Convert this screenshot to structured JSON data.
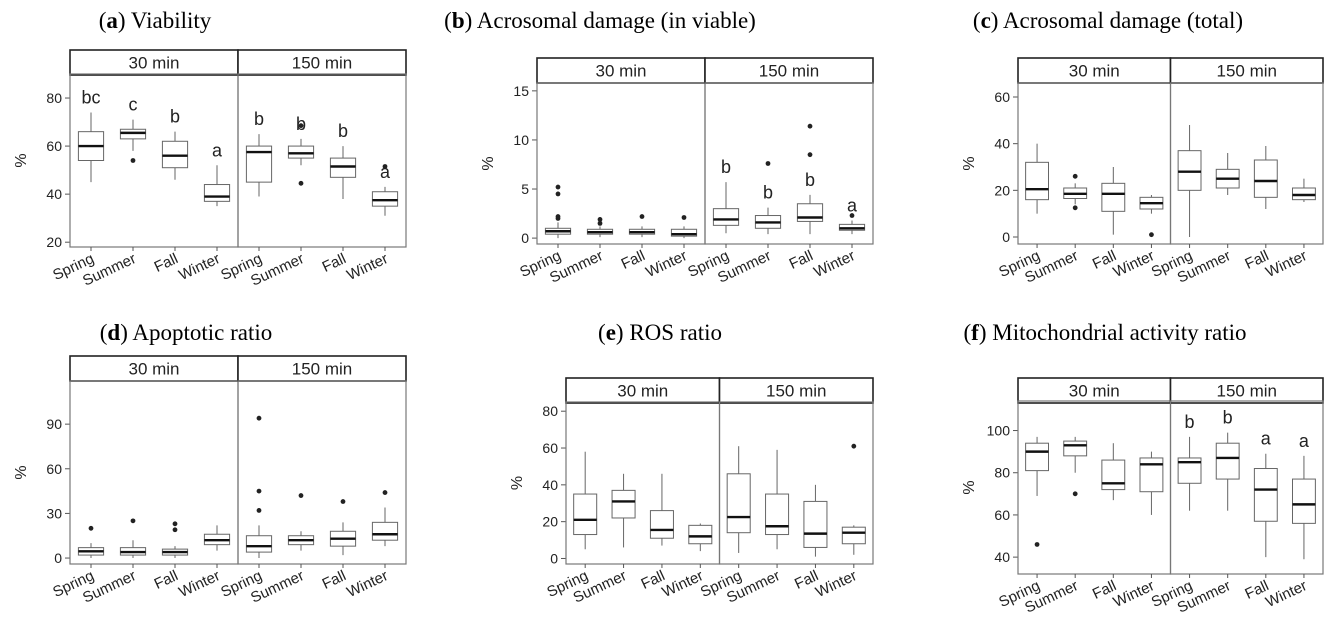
{
  "chart_data": [
    {
      "type": "box",
      "panel": "a",
      "title": "Viability",
      "ylabel": "%",
      "ylim": [
        18,
        90
      ],
      "yticks": [
        20,
        40,
        60,
        80
      ],
      "categories": [
        "Spring",
        "Summer",
        "Fall",
        "Winter"
      ],
      "facets": [
        {
          "label": "30 min",
          "boxes": [
            {
              "min": 45,
              "q1": 54,
              "median": 60,
              "q3": 66,
              "max": 74,
              "outliers": [],
              "letter": "bc"
            },
            {
              "min": 58,
              "q1": 63,
              "median": 65.5,
              "q3": 67,
              "max": 71,
              "outliers": [
                54
              ],
              "letter": "c"
            },
            {
              "min": 46,
              "q1": 51,
              "median": 56,
              "q3": 62,
              "max": 66,
              "outliers": [],
              "letter": "b"
            },
            {
              "min": 35,
              "q1": 37,
              "median": 39,
              "q3": 44,
              "max": 52,
              "outliers": [],
              "letter": "a"
            }
          ]
        },
        {
          "label": "150 min",
          "boxes": [
            {
              "min": 39,
              "q1": 45,
              "median": 57.5,
              "q3": 60,
              "max": 65,
              "outliers": [],
              "letter": "b"
            },
            {
              "min": 52,
              "q1": 55,
              "median": 57,
              "q3": 60,
              "max": 63,
              "outliers": [
                68.5,
                44.5
              ],
              "letter": "b"
            },
            {
              "min": 38,
              "q1": 47,
              "median": 51.5,
              "q3": 55,
              "max": 60,
              "outliers": [],
              "letter": "b"
            },
            {
              "min": 31,
              "q1": 35,
              "median": 37.5,
              "q3": 41,
              "max": 43,
              "outliers": [
                51.5
              ],
              "letter": "a"
            }
          ]
        }
      ]
    },
    {
      "type": "box",
      "panel": "b",
      "title": "Acrosomal damage (in viable)",
      "ylabel": "%",
      "ylim": [
        -0.6,
        15.8
      ],
      "yticks": [
        0,
        5,
        10,
        15
      ],
      "categories": [
        "Spring",
        "Summer",
        "Fall",
        "Winter"
      ],
      "facets": [
        {
          "label": "30 min",
          "boxes": [
            {
              "min": 0,
              "q1": 0.4,
              "median": 0.7,
              "q3": 1.0,
              "max": 1.6,
              "outliers": [
                5.2,
                4.5,
                2.2,
                2.0
              ],
              "letter": ""
            },
            {
              "min": 0.1,
              "q1": 0.4,
              "median": 0.6,
              "q3": 0.9,
              "max": 1.2,
              "outliers": [
                1.9,
                1.5
              ],
              "letter": ""
            },
            {
              "min": 0.1,
              "q1": 0.4,
              "median": 0.6,
              "q3": 0.9,
              "max": 1.2,
              "outliers": [
                2.2
              ],
              "letter": ""
            },
            {
              "min": 0,
              "q1": 0.2,
              "median": 0.4,
              "q3": 0.9,
              "max": 1.2,
              "outliers": [
                2.1
              ],
              "letter": ""
            }
          ]
        },
        {
          "label": "150 min",
          "boxes": [
            {
              "min": 0.5,
              "q1": 1.3,
              "median": 1.9,
              "q3": 3.0,
              "max": 5.7,
              "outliers": [],
              "letter": "b"
            },
            {
              "min": 0.4,
              "q1": 1.0,
              "median": 1.6,
              "q3": 2.3,
              "max": 3.1,
              "outliers": [
                7.6
              ],
              "letter": "b"
            },
            {
              "min": 0.4,
              "q1": 1.7,
              "median": 2.1,
              "q3": 3.5,
              "max": 4.4,
              "outliers": [
                11.4,
                8.5
              ],
              "letter": "b"
            },
            {
              "min": 0.4,
              "q1": 0.8,
              "median": 1.0,
              "q3": 1.4,
              "max": 1.8,
              "outliers": [
                2.3
              ],
              "letter": "a"
            }
          ]
        }
      ]
    },
    {
      "type": "box",
      "panel": "c",
      "title": "Acrosomal damage (total)",
      "ylabel": "%",
      "ylim": [
        -3,
        66
      ],
      "yticks": [
        0,
        20,
        40,
        60
      ],
      "categories": [
        "Spring",
        "Summer",
        "Fall",
        "Winter"
      ],
      "facets": [
        {
          "label": "30 min",
          "boxes": [
            {
              "min": 10,
              "q1": 16,
              "median": 20.5,
              "q3": 32,
              "max": 40,
              "outliers": [],
              "letter": ""
            },
            {
              "min": 14,
              "q1": 16.5,
              "median": 18.5,
              "q3": 21,
              "max": 23,
              "outliers": [
                26,
                12.5
              ],
              "letter": ""
            },
            {
              "min": 1,
              "q1": 11,
              "median": 18.5,
              "q3": 23,
              "max": 30,
              "outliers": [],
              "letter": ""
            },
            {
              "min": 10,
              "q1": 12,
              "median": 14.5,
              "q3": 17,
              "max": 18,
              "outliers": [
                1
              ],
              "letter": ""
            }
          ]
        },
        {
          "label": "150 min",
          "boxes": [
            {
              "min": 0,
              "q1": 20,
              "median": 28,
              "q3": 37,
              "max": 48,
              "outliers": [],
              "letter": ""
            },
            {
              "min": 18,
              "q1": 21,
              "median": 25,
              "q3": 29,
              "max": 36,
              "outliers": [],
              "letter": ""
            },
            {
              "min": 12,
              "q1": 17,
              "median": 24,
              "q3": 33,
              "max": 39,
              "outliers": [],
              "letter": ""
            },
            {
              "min": 15,
              "q1": 16,
              "median": 18,
              "q3": 21,
              "max": 25,
              "outliers": [],
              "letter": ""
            }
          ]
        }
      ]
    },
    {
      "type": "box",
      "panel": "d",
      "title": "Apoptotic ratio",
      "ylabel": "%",
      "ylim": [
        -4,
        119
      ],
      "yticks": [
        0,
        30,
        60,
        90
      ],
      "categories": [
        "Spring",
        "Summer",
        "Fall",
        "Winter"
      ],
      "facets": [
        {
          "label": "30 min",
          "boxes": [
            {
              "min": 0,
              "q1": 2,
              "median": 4.5,
              "q3": 7,
              "max": 10,
              "outliers": [
                20
              ],
              "letter": ""
            },
            {
              "min": 0,
              "q1": 2,
              "median": 4,
              "q3": 7,
              "max": 12,
              "outliers": [
                25
              ],
              "letter": ""
            },
            {
              "min": 0,
              "q1": 2,
              "median": 4,
              "q3": 6,
              "max": 8,
              "outliers": [
                23,
                19
              ],
              "letter": ""
            },
            {
              "min": 5,
              "q1": 9,
              "median": 12,
              "q3": 16,
              "max": 22,
              "outliers": [],
              "letter": ""
            }
          ]
        },
        {
          "label": "150 min",
          "boxes": [
            {
              "min": 0,
              "q1": 4,
              "median": 8,
              "q3": 15,
              "max": 22,
              "outliers": [
                94,
                45,
                32
              ],
              "letter": ""
            },
            {
              "min": 5,
              "q1": 9,
              "median": 12,
              "q3": 15,
              "max": 18,
              "outliers": [
                42
              ],
              "letter": ""
            },
            {
              "min": 2,
              "q1": 8,
              "median": 13,
              "q3": 18,
              "max": 24,
              "outliers": [
                38
              ],
              "letter": ""
            },
            {
              "min": 8,
              "q1": 12,
              "median": 16,
              "q3": 24,
              "max": 34,
              "outliers": [
                44
              ],
              "letter": ""
            }
          ]
        }
      ]
    },
    {
      "type": "box",
      "panel": "e",
      "title": "ROS ratio",
      "ylabel": "%",
      "ylim": [
        -3,
        85
      ],
      "yticks": [
        0,
        20,
        40,
        60,
        80
      ],
      "categories": [
        "Spring",
        "Summer",
        "Fall",
        "Winter"
      ],
      "facets": [
        {
          "label": "30 min",
          "boxes": [
            {
              "min": 5,
              "q1": 13,
              "median": 21,
              "q3": 35,
              "max": 58,
              "outliers": [],
              "letter": ""
            },
            {
              "min": 6,
              "q1": 22,
              "median": 31,
              "q3": 37,
              "max": 46,
              "outliers": [],
              "letter": ""
            },
            {
              "min": 7,
              "q1": 11,
              "median": 15.5,
              "q3": 26,
              "max": 46,
              "outliers": [],
              "letter": ""
            },
            {
              "min": 4,
              "q1": 8,
              "median": 12,
              "q3": 18,
              "max": 19,
              "outliers": [],
              "letter": ""
            }
          ]
        },
        {
          "label": "150 min",
          "boxes": [
            {
              "min": 3,
              "q1": 14,
              "median": 22.5,
              "q3": 46,
              "max": 61,
              "outliers": [],
              "letter": ""
            },
            {
              "min": 5,
              "q1": 13,
              "median": 17.5,
              "q3": 35,
              "max": 59,
              "outliers": [],
              "letter": ""
            },
            {
              "min": 1,
              "q1": 6,
              "median": 13.5,
              "q3": 31,
              "max": 40,
              "outliers": [],
              "letter": ""
            },
            {
              "min": 2,
              "q1": 8,
              "median": 14,
              "q3": 17,
              "max": 18,
              "outliers": [
                61
              ],
              "letter": ""
            }
          ]
        }
      ]
    },
    {
      "type": "box",
      "panel": "f",
      "title": "Mitochondrial activity ratio",
      "ylabel": "%",
      "ylim": [
        32,
        114
      ],
      "yticks": [
        40,
        60,
        80,
        100
      ],
      "categories": [
        "Spring",
        "Summer",
        "Fall",
        "Winter"
      ],
      "facets": [
        {
          "label": "30 min",
          "boxes": [
            {
              "min": 69,
              "q1": 81,
              "median": 90,
              "q3": 94,
              "max": 97,
              "outliers": [
                46
              ],
              "letter": ""
            },
            {
              "min": 80,
              "q1": 88,
              "median": 93,
              "q3": 95,
              "max": 97,
              "outliers": [
                70
              ],
              "letter": ""
            },
            {
              "min": 67,
              "q1": 72,
              "median": 75,
              "q3": 86,
              "max": 94,
              "outliers": [],
              "letter": ""
            },
            {
              "min": 60,
              "q1": 71,
              "median": 84,
              "q3": 87,
              "max": 90,
              "outliers": [],
              "letter": ""
            }
          ]
        },
        {
          "label": "150 min",
          "boxes": [
            {
              "min": 62,
              "q1": 75,
              "median": 85,
              "q3": 87,
              "max": 97,
              "outliers": [],
              "letter": "b"
            },
            {
              "min": 62,
              "q1": 77,
              "median": 87,
              "q3": 94,
              "max": 99,
              "outliers": [],
              "letter": "b"
            },
            {
              "min": 40,
              "q1": 57,
              "median": 72,
              "q3": 82,
              "max": 89,
              "outliers": [],
              "letter": "a"
            },
            {
              "min": 39,
              "q1": 56,
              "median": 65,
              "q3": 77,
              "max": 88,
              "outliers": [],
              "letter": "a"
            }
          ]
        }
      ]
    }
  ]
}
